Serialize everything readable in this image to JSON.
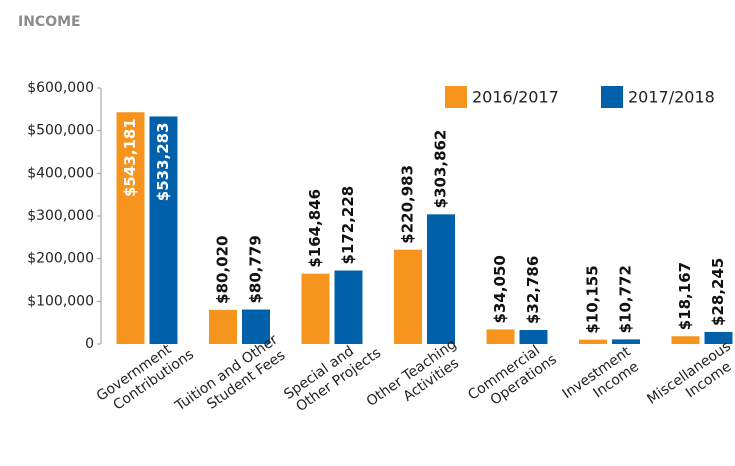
{
  "chart_data": {
    "type": "bar",
    "title": "INCOME",
    "categories": [
      [
        "Government",
        "Contributions"
      ],
      [
        "Tuition and Other",
        "Student Fees"
      ],
      [
        "Special and",
        "Other Projects"
      ],
      [
        "Other Teaching",
        "Activities"
      ],
      [
        "Commercial",
        "Operations"
      ],
      [
        "Investment",
        "Income"
      ],
      [
        "Miscellaneous",
        "Income"
      ]
    ],
    "series": [
      {
        "name": "2016/2017",
        "color": "#f7941d",
        "values": [
          543181,
          80020,
          164846,
          220983,
          34050,
          10155,
          18167
        ],
        "value_labels": [
          "$543,181",
          "$80,020",
          "$164,846",
          "$220,983",
          "$34,050",
          "$10,155",
          "$18,167"
        ]
      },
      {
        "name": "2017/2018",
        "color": "#0060a9",
        "values": [
          533283,
          80779,
          172228,
          303862,
          32786,
          10772,
          28245
        ],
        "value_labels": [
          "$533,283",
          "$80,779",
          "$172,228",
          "$303,862",
          "$32,786",
          "$10,772",
          "$28,245"
        ]
      }
    ],
    "ylim": [
      0,
      600000
    ],
    "yticks": [
      0,
      {
        "value": 100000,
        "label": "$100,000"
      },
      {
        "value": 200000,
        "label": "$200,000"
      },
      {
        "value": 300000,
        "label": "$300,000"
      },
      {
        "value": 400000,
        "label": "$400,000"
      },
      {
        "value": 500000,
        "label": "$500,000"
      },
      {
        "value": 600000,
        "label": "$600,000"
      }
    ],
    "legend": "top-right"
  }
}
